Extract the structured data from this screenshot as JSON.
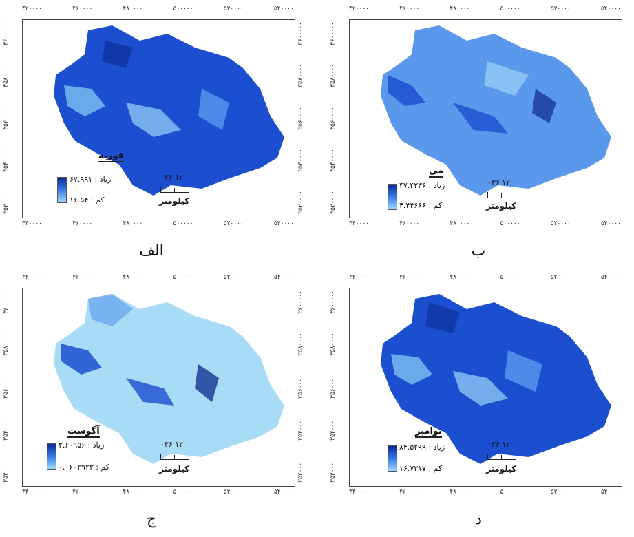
{
  "panels": [
    {
      "caption": "الف",
      "title": "فوریه",
      "legend_high": "زیاد : ۶۷.۹۹۱",
      "legend_low": "کم : ۱۶.۵۴",
      "scale_numbers": "۰۳۶ ۱۲",
      "scale_unit": "کیلومتر",
      "ticks_top": [
        "۴۲۰۰۰۰",
        "۴۶۰۰۰۰",
        "۴۸۰۰۰۰",
        "۵۰۰۰۰۰",
        "۵۲۰۰۰۰",
        "۵۴۰۰۰۰"
      ],
      "ticks_bottom": [
        "۴۴۰۰۰۰",
        "۴۶۰۰۰۰",
        "۴۸۰۰۰۰",
        "۵۰۰۰۰۰",
        "۵۲۰۰۰۰",
        "۵۴۰۰۰۰"
      ],
      "ticks_left": [
        "۳۶۰۰۰۰۰",
        "۳۵۸۰۰۰۰",
        "۳۵۶۰۰۰۰",
        "۳۵۴۰۰۰۰",
        "۳۵۲۰۰۰۰"
      ],
      "ticks_right": [
        "۳۶۰۰۰۰۰",
        "۳۵۸۰۰۰۰",
        "۳۵۶۰۰۰۰",
        "۳۵۴۰۰۰۰",
        "۳۵۲۰۰۰۰"
      ],
      "tone": "dark"
    },
    {
      "caption": "ب",
      "title": "می",
      "legend_high": "زیاد : ۴۷.۴۲۳۶",
      "legend_low": "کم : ۴.۴۴۶۶۶",
      "scale_numbers": "۰۳۶ ۱۲",
      "scale_unit": "کیلومتر",
      "ticks_top": [
        "۴۲۰۰۰۰",
        "۴۶۰۰۰۰",
        "۴۸۰۰۰۰",
        "۵۰۰۰۰۰",
        "۵۲۰۰۰۰",
        "۵۴۰۰۰۰"
      ],
      "ticks_bottom": [
        "۴۴۰۰۰۰",
        "۴۶۰۰۰۰",
        "۴۸۰۰۰۰",
        "۵۰۰۰۰۰",
        "۵۲۰۰۰۰",
        "۵۴۰۰۰۰"
      ],
      "ticks_left": [
        "۳۶۰۰۰۰۰",
        "۳۵۸۰۰۰۰",
        "۳۵۶۰۰۰۰",
        "۳۵۴۰۰۰۰",
        "۳۵۲۰۰۰۰"
      ],
      "ticks_right": [
        "۳۶۰۰۰۰۰",
        "۳۵۸۰۰۰۰",
        "۳۵۶۰۰۰۰",
        "۳۵۴۰۰۰۰",
        "۳۵۲۰۰۰۰"
      ],
      "tone": "mid"
    },
    {
      "caption": "ج",
      "title": "آگوست",
      "legend_high": "زیاد : ۲.۶۰۹۵۶",
      "legend_low": "کم : ۰.۰۶۰۲۹۲۳",
      "scale_numbers": "۰۳۶ ۱۲",
      "scale_unit": "کیلومتر",
      "ticks_top": [
        "۴۲۰۰۰۰",
        "۴۶۰۰۰۰",
        "۴۸۰۰۰۰",
        "۵۰۰۰۰۰",
        "۵۲۰۰۰۰",
        "۵۴۰۰۰۰"
      ],
      "ticks_bottom": [
        "۴۴۰۰۰۰",
        "۴۶۰۰۰۰",
        "۴۸۰۰۰۰",
        "۵۰۰۰۰۰",
        "۵۲۰۰۰۰",
        "۵۴۰۰۰۰"
      ],
      "ticks_left": [
        "۳۶۰۰۰۰۰",
        "۳۵۸۰۰۰۰",
        "۳۵۶۰۰۰۰",
        "۳۵۴۰۰۰۰",
        "۳۵۲۰۰۰۰"
      ],
      "ticks_right": [
        "۳۶۰۰۰۰۰",
        "۳۵۸۰۰۰۰",
        "۳۵۶۰۰۰۰",
        "۳۵۴۰۰۰۰",
        "۳۵۲۰۰۰۰"
      ],
      "tone": "light"
    },
    {
      "caption": "د",
      "title": "نوامبر",
      "legend_high": "زیاد : ۸۴.۵۲۹۹",
      "legend_low": "کم : ۱۶.۷۳۱۷",
      "scale_numbers": "۰۳۶ ۱۲",
      "scale_unit": "کیلومتر",
      "ticks_top": [
        "۴۲۰۰۰۰",
        "۴۶۰۰۰۰",
        "۴۸۰۰۰۰",
        "۵۰۰۰۰۰",
        "۵۲۰۰۰۰",
        "۵۴۰۰۰۰"
      ],
      "ticks_bottom": [
        "۴۴۰۰۰۰",
        "۴۶۰۰۰۰",
        "۴۸۰۰۰۰",
        "۵۰۰۰۰۰",
        "۵۲۰۰۰۰",
        "۵۴۰۰۰۰"
      ],
      "ticks_left": [
        "۳۶۰۰۰۰۰",
        "۳۵۸۰۰۰۰",
        "۳۵۶۰۰۰۰",
        "۳۵۴۰۰۰۰",
        "۳۵۲۰۰۰۰"
      ],
      "ticks_right": [
        "۳۶۰۰۰۰۰",
        "۳۵۸۰۰۰۰",
        "۳۵۶۰۰۰۰",
        "۳۵۴۰۰۰۰",
        "۳۵۲۰۰۰۰"
      ],
      "tone": "dark"
    }
  ],
  "colors": {
    "dark": "#1c4fd0",
    "mid": "#5a98ec",
    "light": "#a8dcf6",
    "deep": "#0b2a8c"
  }
}
